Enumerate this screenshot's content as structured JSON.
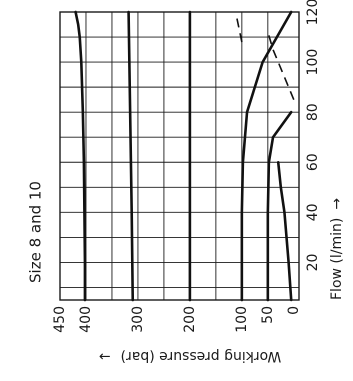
{
  "chart_data": {
    "type": "line",
    "orientation": "rotated-90-ccw",
    "title": "Size 8 and 10",
    "xlabel": "Flow (l/min)",
    "xlabel_arrow": "→",
    "ylabel": "Working pressure (bar)",
    "ylabel_arrow": "→",
    "x_ticks": [
      20,
      40,
      60,
      80,
      100,
      120
    ],
    "y_ticks": [
      0,
      50,
      100,
      200,
      300,
      400,
      450
    ],
    "xlim": [
      5,
      120
    ],
    "ylim": [
      -10,
      450
    ],
    "grid": true,
    "series": [
      {
        "style": "solid",
        "x": [
          5,
          20,
          40,
          60,
          80,
          100,
          110,
          115,
          120
        ],
        "y": [
          402,
          402,
          403,
          404,
          406,
          409,
          412,
          415,
          420
        ]
      },
      {
        "style": "solid",
        "x": [
          5,
          40,
          80,
          120
        ],
        "y": [
          310,
          312,
          315,
          318
        ]
      },
      {
        "style": "solid",
        "x": [
          5,
          120
        ],
        "y": [
          200,
          200
        ]
      },
      {
        "style": "solid",
        "x": [
          5,
          40,
          60,
          80,
          100,
          120
        ],
        "y": [
          100,
          100,
          98,
          90,
          60,
          5
        ]
      },
      {
        "style": "solid",
        "x": [
          5,
          40,
          60,
          70,
          80
        ],
        "y": [
          50,
          50,
          48,
          40,
          5
        ]
      },
      {
        "style": "solid",
        "x": [
          5,
          20,
          40,
          50,
          60
        ],
        "y": [
          5,
          10,
          18,
          25,
          30
        ]
      },
      {
        "style": "dashed",
        "x": [
          85,
          95,
          105,
          112
        ],
        "y": [
          0,
          20,
          40,
          50
        ]
      },
      {
        "style": "dashed",
        "x": [
          108,
          118
        ],
        "y": [
          100,
          110
        ]
      }
    ]
  }
}
